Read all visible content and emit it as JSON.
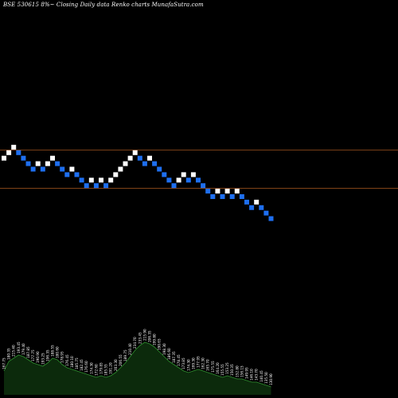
{
  "header": {
    "text": "BSE 530615 8%~  Closing Daily data  Renko  charts MunafaSutra.com"
  },
  "colors": {
    "background": "#000000",
    "up_brick": "#ffffff",
    "down_brick": "#1e6ff0",
    "level_line": "#a0521e",
    "volume_fill": "#0c2a0c",
    "volume_line": "#2f8f2f",
    "volume_label": "#ffffff"
  },
  "chart_data": [
    {
      "type": "renko",
      "title": "",
      "grid": false,
      "bricks": [
        {
          "dir": "up",
          "level": 12
        },
        {
          "dir": "up",
          "level": 13
        },
        {
          "dir": "up",
          "level": 14
        },
        {
          "dir": "down",
          "level": 13
        },
        {
          "dir": "down",
          "level": 12
        },
        {
          "dir": "down",
          "level": 11
        },
        {
          "dir": "down",
          "level": 10
        },
        {
          "dir": "up",
          "level": 11
        },
        {
          "dir": "down",
          "level": 10
        },
        {
          "dir": "up",
          "level": 11
        },
        {
          "dir": "up",
          "level": 12
        },
        {
          "dir": "down",
          "level": 11
        },
        {
          "dir": "down",
          "level": 10
        },
        {
          "dir": "down",
          "level": 9
        },
        {
          "dir": "up",
          "level": 10
        },
        {
          "dir": "down",
          "level": 9
        },
        {
          "dir": "down",
          "level": 8
        },
        {
          "dir": "down",
          "level": 7
        },
        {
          "dir": "up",
          "level": 8
        },
        {
          "dir": "down",
          "level": 7
        },
        {
          "dir": "up",
          "level": 8
        },
        {
          "dir": "down",
          "level": 7
        },
        {
          "dir": "up",
          "level": 8
        },
        {
          "dir": "up",
          "level": 9
        },
        {
          "dir": "up",
          "level": 10
        },
        {
          "dir": "up",
          "level": 11
        },
        {
          "dir": "up",
          "level": 12
        },
        {
          "dir": "up",
          "level": 13
        },
        {
          "dir": "down",
          "level": 12
        },
        {
          "dir": "down",
          "level": 11
        },
        {
          "dir": "up",
          "level": 12
        },
        {
          "dir": "down",
          "level": 11
        },
        {
          "dir": "down",
          "level": 10
        },
        {
          "dir": "down",
          "level": 9
        },
        {
          "dir": "down",
          "level": 8
        },
        {
          "dir": "down",
          "level": 7
        },
        {
          "dir": "up",
          "level": 8
        },
        {
          "dir": "up",
          "level": 9
        },
        {
          "dir": "down",
          "level": 8
        },
        {
          "dir": "up",
          "level": 9
        },
        {
          "dir": "down",
          "level": 8
        },
        {
          "dir": "down",
          "level": 7
        },
        {
          "dir": "down",
          "level": 6
        },
        {
          "dir": "down",
          "level": 5
        },
        {
          "dir": "up",
          "level": 6
        },
        {
          "dir": "down",
          "level": 5
        },
        {
          "dir": "up",
          "level": 6
        },
        {
          "dir": "down",
          "level": 5
        },
        {
          "dir": "up",
          "level": 6
        },
        {
          "dir": "down",
          "level": 5
        },
        {
          "dir": "down",
          "level": 4
        },
        {
          "dir": "down",
          "level": 3
        },
        {
          "dir": "up",
          "level": 4
        },
        {
          "dir": "down",
          "level": 3
        },
        {
          "dir": "down",
          "level": 2
        },
        {
          "dir": "down",
          "level": 1
        }
      ],
      "price_levels": [
        14,
        7
      ]
    },
    {
      "type": "area",
      "title": "",
      "grid": false,
      "volume": [
        30,
        42,
        46,
        50,
        48,
        44,
        40,
        38,
        36,
        40,
        46,
        44,
        38,
        34,
        32,
        30,
        28,
        26,
        24,
        22,
        24,
        22,
        24,
        28,
        34,
        40,
        48,
        56,
        62,
        66,
        64,
        60,
        54,
        48,
        42,
        38,
        34,
        30,
        28,
        30,
        32,
        30,
        28,
        26,
        24,
        22,
        24,
        22,
        20,
        20,
        18,
        16,
        16,
        14,
        12,
        10
      ],
      "labels": [
        "167.75",
        "180.35",
        "215.40",
        "193.45",
        "179.40",
        "187.85",
        "177.75",
        "190.90",
        "193.25",
        "196.35",
        "188.55",
        "180.60",
        "178.95",
        "176.45",
        "180.10",
        "185.75",
        "182.45",
        "176.60",
        "174.30",
        "172.60",
        "179.85",
        "185.55",
        "191.20",
        "203.30",
        "206.55",
        "189.75",
        "210.40",
        "234.70",
        "233.45",
        "215.90",
        "206.35",
        "199.80",
        "190.65",
        "198.30",
        "186.60",
        "187.35",
        "178.45",
        "173.85",
        "174.30",
        "169.30",
        "177.95",
        "162.30",
        "165.70",
        "175.55",
        "164.20",
        "155.55",
        "153.25",
        "150.35",
        "152.80",
        "156.15",
        "149.95",
        "146.10",
        "143.70",
        "140.45",
        "135.50",
        "130.90"
      ]
    }
  ]
}
